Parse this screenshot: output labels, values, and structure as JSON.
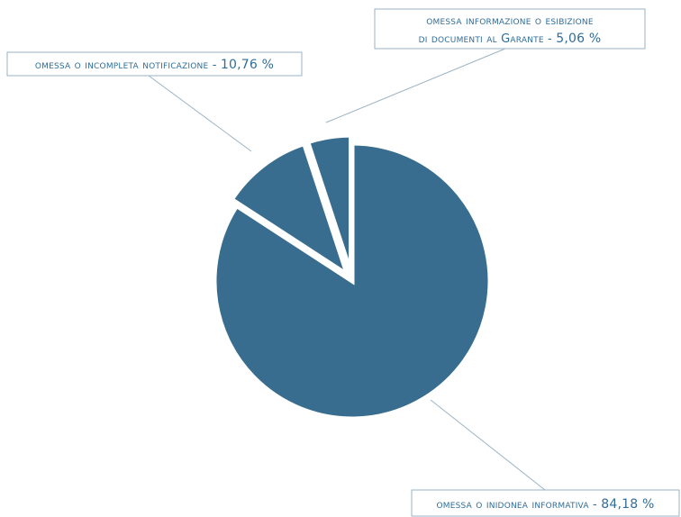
{
  "chart_data": {
    "type": "pie",
    "title": "",
    "slices": [
      {
        "label_lines": [
          "omessa o inidonea informativa - "
        ],
        "value_text": "84,18 %",
        "value": 84.18,
        "exploded": false
      },
      {
        "label_lines": [
          "omessa o incompleta notificazione - "
        ],
        "value_text": "10,76 %",
        "value": 10.76,
        "exploded": true
      },
      {
        "label_lines": [
          "omessa informazione o esibizione",
          "di documenti al Garante - "
        ],
        "value_text": "5,06 %",
        "value": 5.06,
        "exploded": true
      }
    ],
    "colors": {
      "slice": "#386d8f",
      "label_text": "#2f6d99",
      "callout_border": "#9bb3c6"
    },
    "legend": "none",
    "grid": false
  }
}
